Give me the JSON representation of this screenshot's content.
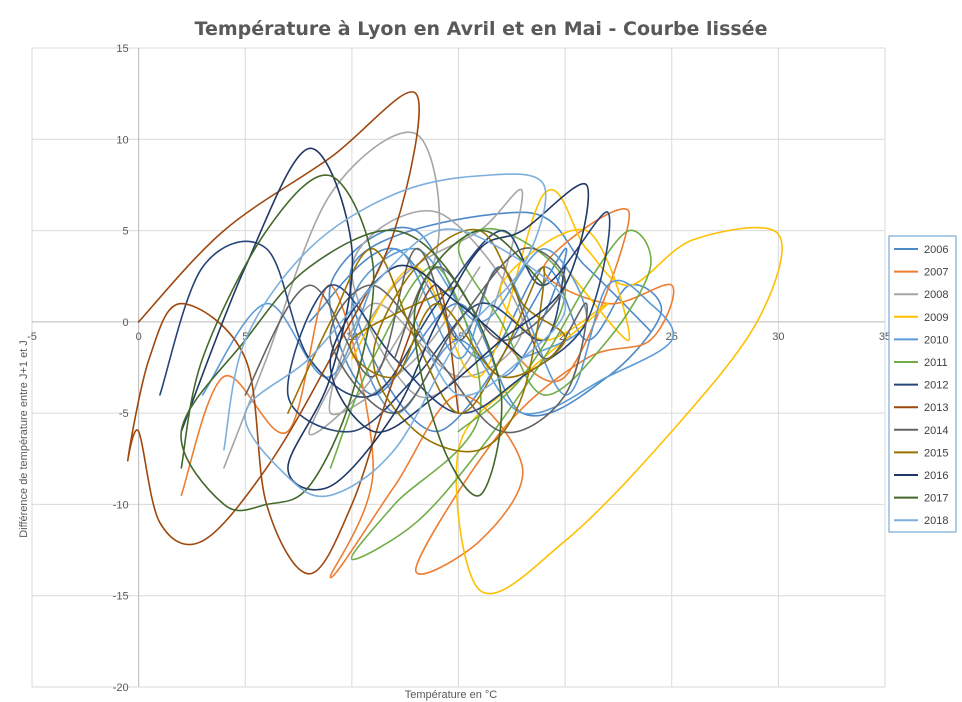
{
  "chart_data": {
    "type": "line",
    "title": "Température à Lyon en Avril et en Mai - Courbe lissée",
    "xlabel": "Température en °C",
    "ylabel": "Différence de température entre J+1 et J",
    "xlim": [
      -5,
      35
    ],
    "ylim": [
      -20,
      15
    ],
    "x_ticks": [
      -5,
      0,
      5,
      10,
      15,
      20,
      25,
      30,
      35
    ],
    "y_ticks": [
      -20,
      -15,
      -10,
      -5,
      0,
      5,
      10,
      15
    ],
    "x_tick_labels": [
      "-5",
      "0",
      "5",
      "10",
      "15",
      "20",
      "25",
      "30",
      "35"
    ],
    "y_tick_labels": [
      "-20",
      "-15",
      "-10",
      "-5",
      "0",
      "5",
      "10",
      "15"
    ],
    "grid": true,
    "smoothed": true,
    "legend_position": "right",
    "series": [
      {
        "name": "2006",
        "color": "#4e8ac8",
        "points": [
          [
            8,
            0
          ],
          [
            12,
            4
          ],
          [
            16,
            -2
          ],
          [
            19,
            3
          ],
          [
            21,
            -1
          ],
          [
            23,
            2
          ],
          [
            24.5,
            0.5
          ],
          [
            22,
            -3
          ],
          [
            18,
            -5
          ],
          [
            15,
            1
          ],
          [
            11,
            -4
          ],
          [
            9,
            2
          ],
          [
            13,
            5
          ],
          [
            17,
            -3
          ],
          [
            20,
            4
          ],
          [
            14,
            -6
          ],
          [
            10,
            3
          ],
          [
            18,
            6
          ],
          [
            21,
            3
          ],
          [
            24,
            -0.5
          ]
        ]
      },
      {
        "name": "2007",
        "color": "#ed7d31",
        "points": [
          [
            2,
            -9.5
          ],
          [
            4,
            -3
          ],
          [
            7,
            -6
          ],
          [
            9,
            2
          ],
          [
            11,
            -8
          ],
          [
            9,
            -14
          ],
          [
            12,
            -9
          ],
          [
            15,
            -4
          ],
          [
            18,
            -8
          ],
          [
            16,
            -12
          ],
          [
            13,
            -13.5
          ],
          [
            17,
            -6
          ],
          [
            21,
            -2
          ],
          [
            24,
            -1
          ],
          [
            25,
            2
          ],
          [
            22,
            1
          ],
          [
            19,
            3
          ],
          [
            23,
            6
          ],
          [
            20,
            -3
          ],
          [
            17,
            -1
          ]
        ]
      },
      {
        "name": "2008",
        "color": "#a5a5a5",
        "points": [
          [
            4,
            -8
          ],
          [
            6,
            -2
          ],
          [
            9,
            7
          ],
          [
            13,
            10.3
          ],
          [
            14,
            4
          ],
          [
            11,
            -3
          ],
          [
            8,
            -6
          ],
          [
            12,
            2
          ],
          [
            16,
            5
          ],
          [
            18,
            7
          ],
          [
            16,
            -1
          ],
          [
            13,
            -4
          ],
          [
            10,
            3
          ],
          [
            14,
            6
          ],
          [
            18,
            0
          ],
          [
            15,
            -3
          ],
          [
            11,
            1
          ],
          [
            9,
            -5
          ],
          [
            13,
            -2
          ],
          [
            16,
            3
          ]
        ]
      },
      {
        "name": "2009",
        "color": "#ffc000",
        "points": [
          [
            10,
            -2
          ],
          [
            13,
            3
          ],
          [
            16,
            -3
          ],
          [
            19,
            7
          ],
          [
            21,
            4
          ],
          [
            23,
            2
          ],
          [
            26,
            4.5
          ],
          [
            30,
            4.8
          ],
          [
            29,
            0
          ],
          [
            25,
            -6
          ],
          [
            20,
            -12
          ],
          [
            16,
            -14.7
          ],
          [
            15,
            -7
          ],
          [
            18,
            -3
          ],
          [
            22,
            1
          ],
          [
            19,
            -1
          ],
          [
            17,
            2
          ],
          [
            21,
            5
          ],
          [
            23,
            -1
          ],
          [
            20,
            3
          ]
        ]
      },
      {
        "name": "2010",
        "color": "#5b9bd5",
        "points": [
          [
            3,
            -4
          ],
          [
            6,
            1
          ],
          [
            9,
            -3
          ],
          [
            12,
            4
          ],
          [
            15,
            -2
          ],
          [
            17,
            3
          ],
          [
            20,
            -4
          ],
          [
            22,
            2
          ],
          [
            24,
            1
          ],
          [
            25,
            -1
          ],
          [
            22,
            -3
          ],
          [
            18,
            -5
          ],
          [
            15,
            -1
          ],
          [
            12,
            -5
          ],
          [
            10,
            1
          ],
          [
            13,
            4
          ],
          [
            16,
            0
          ],
          [
            19,
            4
          ],
          [
            21,
            0
          ],
          [
            18,
            -2
          ]
        ]
      },
      {
        "name": "2011",
        "color": "#70ad47",
        "points": [
          [
            9,
            -8
          ],
          [
            11,
            -2
          ],
          [
            14,
            3
          ],
          [
            16,
            -5
          ],
          [
            12,
            -10
          ],
          [
            10,
            -13
          ],
          [
            13,
            -11
          ],
          [
            16,
            -7
          ],
          [
            19,
            -2
          ],
          [
            21,
            2
          ],
          [
            23,
            5
          ],
          [
            24,
            3
          ],
          [
            22,
            -1
          ],
          [
            19,
            -4
          ],
          [
            17,
            0
          ],
          [
            15,
            4
          ],
          [
            17,
            5
          ],
          [
            20,
            2
          ],
          [
            18,
            -3
          ],
          [
            15,
            -6
          ]
        ]
      },
      {
        "name": "2012",
        "color": "#264478",
        "points": [
          [
            1,
            -4
          ],
          [
            3,
            3
          ],
          [
            6,
            4
          ],
          [
            8,
            -2
          ],
          [
            11,
            -4
          ],
          [
            14,
            1
          ],
          [
            17,
            5
          ],
          [
            19,
            2
          ],
          [
            22,
            6
          ],
          [
            21,
            0
          ],
          [
            18,
            -3
          ],
          [
            15,
            -5
          ],
          [
            12,
            -2
          ],
          [
            9,
            2
          ],
          [
            7,
            -4
          ],
          [
            10,
            -6
          ],
          [
            13,
            -3
          ],
          [
            16,
            1
          ],
          [
            19,
            -1
          ],
          [
            20,
            3
          ]
        ]
      },
      {
        "name": "2013",
        "color": "#9e480e",
        "points": [
          [
            0,
            0
          ],
          [
            4,
            5
          ],
          [
            9,
            9
          ],
          [
            13,
            12.5
          ],
          [
            12,
            5
          ],
          [
            9,
            -2
          ],
          [
            6,
            -8
          ],
          [
            3,
            -12
          ],
          [
            1,
            -11
          ],
          [
            0,
            -6
          ],
          [
            -0.5,
            -7.5
          ],
          [
            0.5,
            -2
          ],
          [
            2,
            1
          ],
          [
            5,
            -2
          ],
          [
            6,
            -10
          ],
          [
            8,
            -13.8
          ],
          [
            10,
            -10
          ],
          [
            12,
            -3
          ],
          [
            14,
            2
          ],
          [
            15,
            -5
          ]
        ]
      },
      {
        "name": "2014",
        "color": "#636363",
        "points": [
          [
            5,
            -4
          ],
          [
            8,
            2
          ],
          [
            11,
            -3
          ],
          [
            13,
            4
          ],
          [
            15,
            -1
          ],
          [
            17,
            3
          ],
          [
            19,
            -2
          ],
          [
            21,
            1
          ],
          [
            20,
            -4
          ],
          [
            17,
            -6
          ],
          [
            14,
            -2
          ],
          [
            11,
            2
          ],
          [
            9,
            -1
          ],
          [
            12,
            -5
          ],
          [
            15,
            0
          ],
          [
            18,
            4
          ],
          [
            20,
            2
          ],
          [
            17,
            -1
          ],
          [
            14,
            3
          ],
          [
            12,
            -2
          ]
        ]
      },
      {
        "name": "2015",
        "color": "#997300",
        "points": [
          [
            7,
            -5
          ],
          [
            9,
            0
          ],
          [
            11,
            4
          ],
          [
            13,
            -1
          ],
          [
            15,
            -5
          ],
          [
            17,
            -2
          ],
          [
            19,
            3
          ],
          [
            18,
            -4
          ],
          [
            16,
            -7
          ],
          [
            13,
            -6
          ],
          [
            11,
            -2
          ],
          [
            13,
            3
          ],
          [
            16,
            5
          ],
          [
            18,
            1
          ],
          [
            20,
            -1
          ],
          [
            17,
            -3
          ],
          [
            14,
            1
          ],
          [
            12,
            -3
          ],
          [
            10,
            -1
          ],
          [
            15,
            2
          ]
        ]
      },
      {
        "name": "2016",
        "color": "#1f3864",
        "points": [
          [
            2,
            -6
          ],
          [
            5,
            3
          ],
          [
            8,
            9.5
          ],
          [
            10,
            4
          ],
          [
            9,
            -3
          ],
          [
            7,
            -8
          ],
          [
            9,
            -9
          ],
          [
            12,
            -5
          ],
          [
            14,
            0
          ],
          [
            16,
            4
          ],
          [
            18,
            5
          ],
          [
            21,
            7.5
          ],
          [
            20,
            2
          ],
          [
            17,
            -1
          ],
          [
            14,
            -4
          ],
          [
            11,
            -6
          ],
          [
            9,
            -2
          ],
          [
            12,
            3
          ],
          [
            15,
            1
          ],
          [
            18,
            -2
          ]
        ]
      },
      {
        "name": "2017",
        "color": "#43682b",
        "points": [
          [
            2,
            -8
          ],
          [
            3,
            -2
          ],
          [
            6,
            5
          ],
          [
            9,
            8
          ],
          [
            11,
            3
          ],
          [
            10,
            -4
          ],
          [
            8,
            -9
          ],
          [
            6,
            -10
          ],
          [
            4,
            -10
          ],
          [
            2,
            -6
          ],
          [
            5,
            -1
          ],
          [
            8,
            3
          ],
          [
            12,
            5
          ],
          [
            15,
            2
          ],
          [
            17,
            -4
          ],
          [
            16,
            -9.5
          ],
          [
            14,
            -6
          ],
          [
            13,
            1
          ],
          [
            16,
            5
          ],
          [
            19,
            2
          ]
        ]
      },
      {
        "name": "2018",
        "color": "#7cafdd",
        "points": [
          [
            4,
            -7
          ],
          [
            5,
            -1
          ],
          [
            8,
            4
          ],
          [
            12,
            7
          ],
          [
            16,
            8
          ],
          [
            19,
            7.5
          ],
          [
            18,
            3
          ],
          [
            15,
            -1
          ],
          [
            12,
            -7
          ],
          [
            9,
            -9.5
          ],
          [
            7,
            -8.5
          ],
          [
            5,
            -5
          ],
          [
            8,
            -2
          ],
          [
            11,
            2
          ],
          [
            14,
            5
          ],
          [
            17,
            4
          ],
          [
            20,
            1
          ],
          [
            18,
            -2
          ],
          [
            15,
            -4
          ],
          [
            13,
            0
          ]
        ]
      }
    ]
  }
}
